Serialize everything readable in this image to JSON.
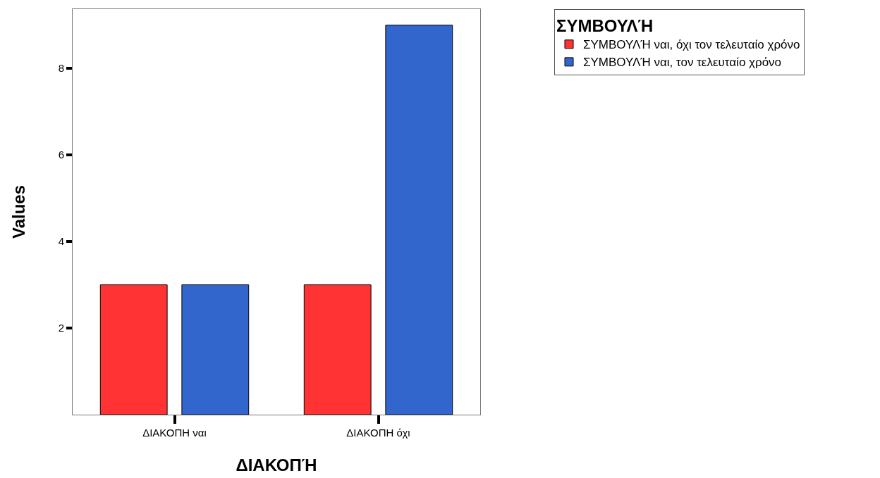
{
  "chart_data": {
    "type": "bar",
    "xlabel": "ΔΙΑΚΟΠΉ",
    "ylabel": "Values",
    "legend_title": "ΣΥΜΒΟΥΛΉ",
    "categories": [
      "ΔΙΑΚΟΠΗ ναι",
      "ΔΙΑΚΟΠΗ όχι"
    ],
    "series": [
      {
        "name": "ΣΥΜΒΟΥΛΉ ναι, όχι τον τελευταίο χρόνο",
        "color": "#ff3333",
        "values": [
          3,
          3
        ]
      },
      {
        "name": "ΣΥΜΒΟΥΛΉ ναι, τον τελευταίο χρόνο",
        "color": "#3366cc",
        "values": [
          3,
          9
        ]
      }
    ],
    "ylim": [
      0,
      9.37
    ],
    "yticks": [
      2,
      4,
      6,
      8
    ],
    "legend": "top right"
  }
}
